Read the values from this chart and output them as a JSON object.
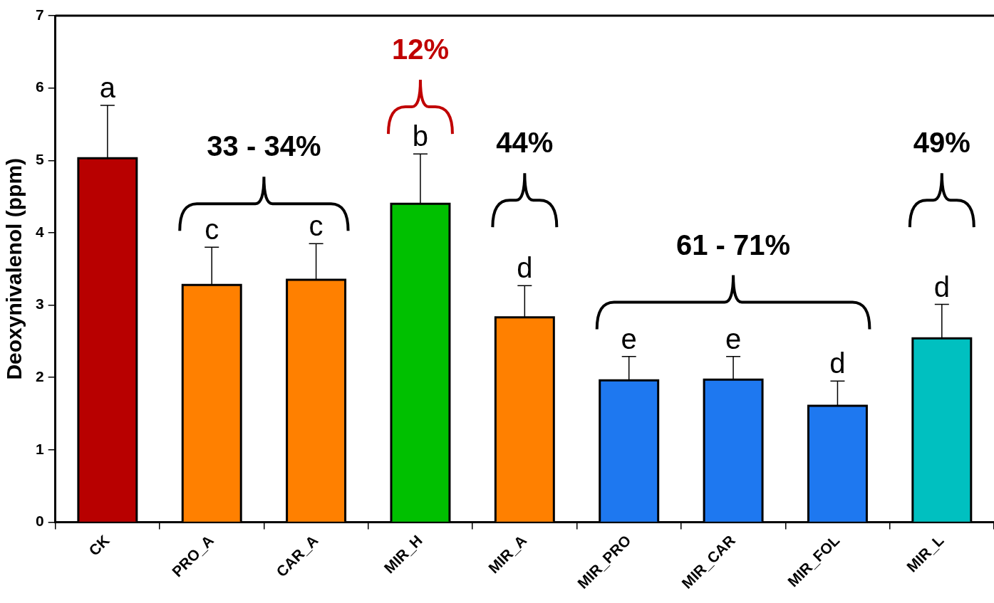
{
  "chart_data": {
    "type": "bar",
    "ylabel": "Deoxynivalenol (ppm)",
    "categories": [
      "CK",
      "PRO_A",
      "CAR_A",
      "MIR_H",
      "MIR_A",
      "MIR_PRO",
      "MIR_CAR",
      "MIR_FOL",
      "MIR_L"
    ],
    "values": [
      5.03,
      3.28,
      3.35,
      4.4,
      2.83,
      1.96,
      1.97,
      1.61,
      2.54
    ],
    "errors": [
      [
        5.03,
        5.76
      ],
      [
        3.28,
        3.8
      ],
      [
        3.35,
        3.85
      ],
      [
        4.4,
        5.09
      ],
      [
        2.83,
        3.27
      ],
      [
        1.96,
        2.29
      ],
      [
        1.97,
        2.29
      ],
      [
        1.61,
        1.95
      ],
      [
        2.54,
        3.01
      ]
    ],
    "colors": [
      "#b80000",
      "#ff8000",
      "#ff8000",
      "#00c000",
      "#ff8000",
      "#1e78f0",
      "#1e78f0",
      "#1e78f0",
      "#00c0c0"
    ],
    "ylim": [
      0,
      7
    ],
    "yticks": [
      0,
      1,
      2,
      3,
      4,
      5,
      6,
      7
    ],
    "grid": false,
    "legend": false,
    "annotations": [
      {
        "text": "a",
        "x": "CK",
        "y": 5.76
      },
      {
        "text": "c",
        "x": "PRO_A",
        "y": 3.8
      },
      {
        "text": "c",
        "x": "CAR_A",
        "y": 3.85
      },
      {
        "text": "b",
        "x": "MIR_H",
        "y": 5.09
      },
      {
        "text": "d",
        "x": "MIR_A",
        "y": 3.27
      },
      {
        "text": "e",
        "x": "MIR_PRO",
        "y": 2.29
      },
      {
        "text": "e",
        "x": "MIR_CAR",
        "y": 2.29
      },
      {
        "text": "d",
        "x": "MIR_FOL",
        "y": 1.95
      },
      {
        "text": "d",
        "x": "MIR_L",
        "y": 3.01
      },
      "33 - 34%",
      "12%",
      "44%",
      "61 - 71%",
      "49%"
    ]
  }
}
